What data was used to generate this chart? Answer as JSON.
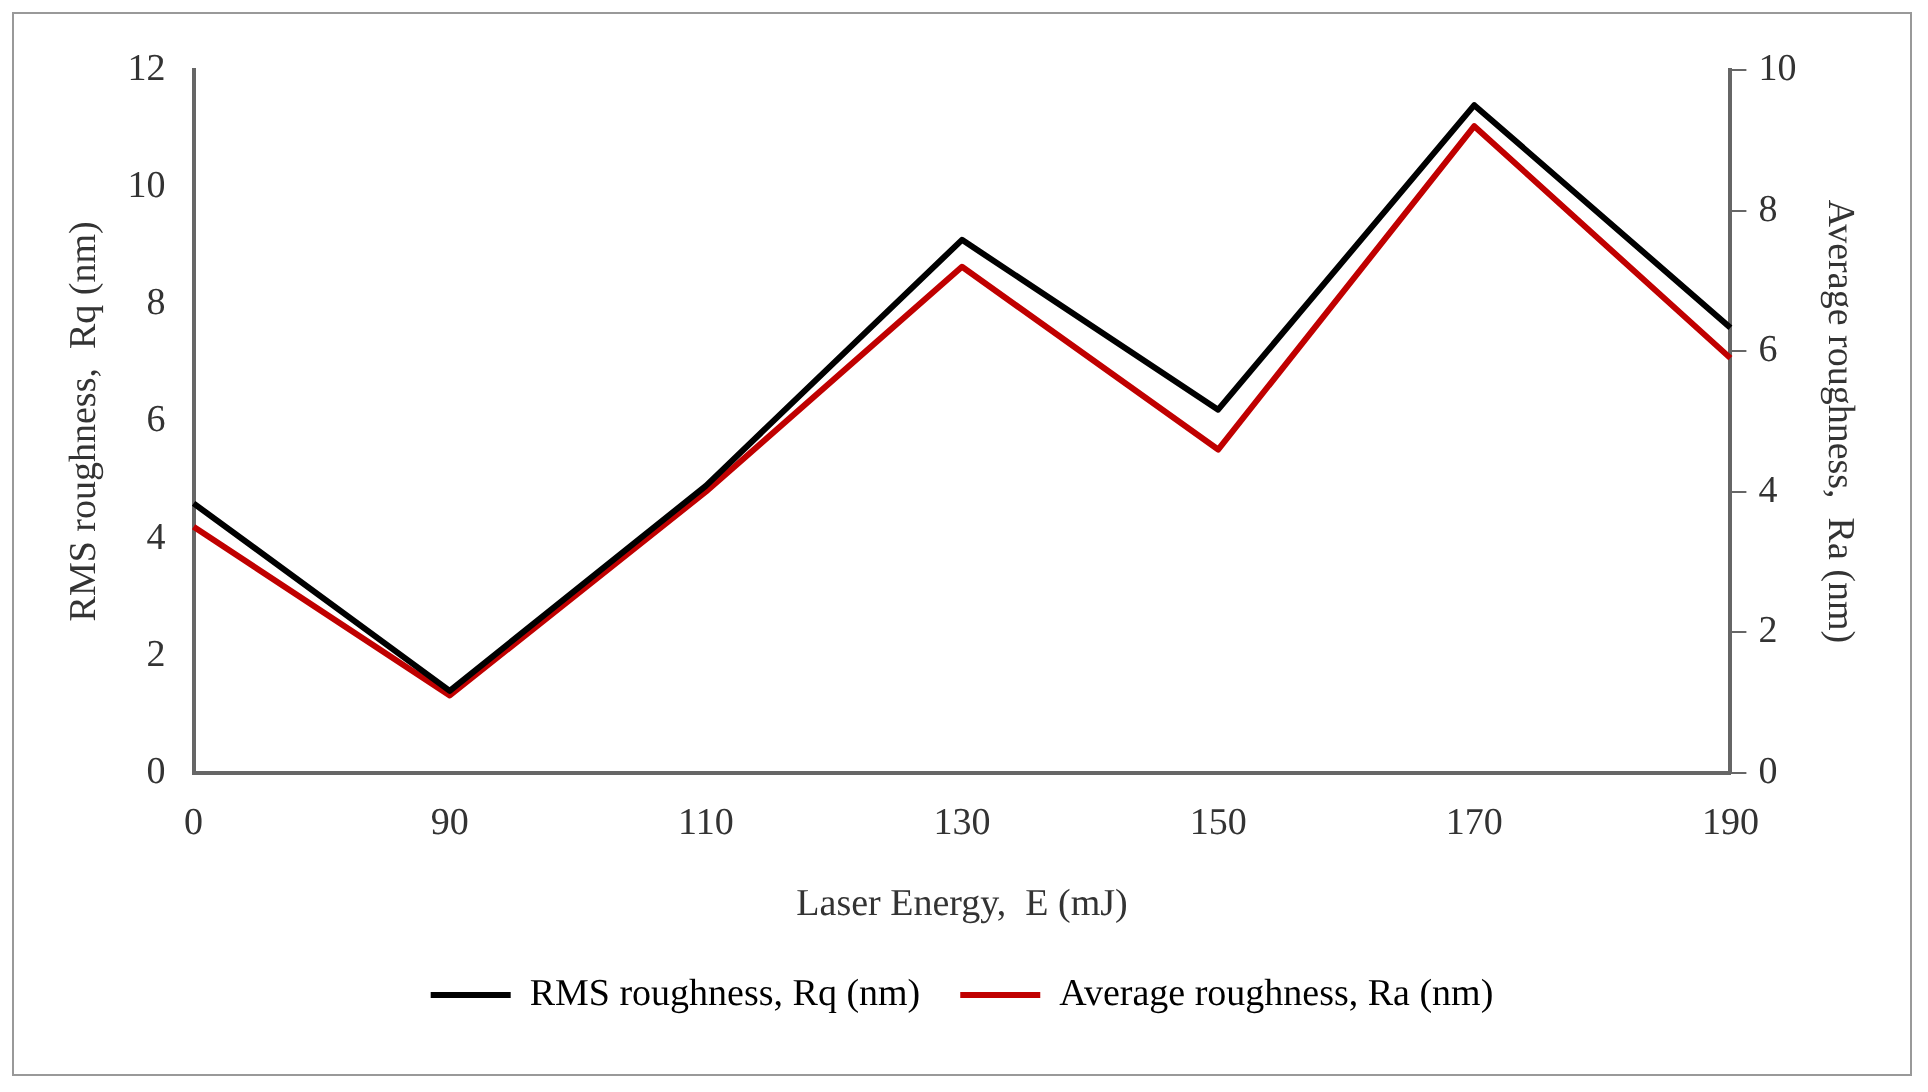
{
  "chart_data": {
    "type": "line",
    "xlabel": "Laser Energy,  E (mJ)",
    "ylabel": "RMS roughness,  Rq (nm)",
    "y2label": "Average roughness,  Ra (nm)",
    "categories": [
      "0",
      "90",
      "110",
      "130",
      "150",
      "170",
      "190"
    ],
    "series": [
      {
        "name": "RMS roughness, Rq (nm)",
        "color": "#000000",
        "values": [
          4.6,
          1.4,
          4.9,
          9.1,
          6.2,
          11.4,
          7.6
        ]
      },
      {
        "name": "Average roughness, Ra (nm)",
        "color": "#c00000",
        "axis": "y2",
        "values": [
          3.5,
          1.1,
          4.0,
          7.2,
          4.6,
          9.2,
          5.9
        ]
      }
    ],
    "ylim": [
      0,
      12
    ],
    "yticks": [
      0,
      2,
      4,
      6,
      8,
      10,
      12
    ],
    "y2lim": [
      0,
      10
    ],
    "y2ticks": [
      0,
      2,
      4,
      6,
      8,
      10
    ],
    "grid": false,
    "legend": "bottom",
    "marker": "none",
    "line_style": "solid"
  }
}
